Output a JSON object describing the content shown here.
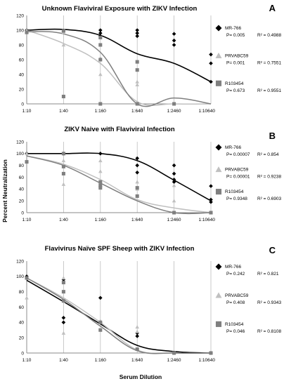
{
  "figure": {
    "ylabel": "Percent Neutralization",
    "xlabel": "Serum Dilution"
  },
  "chart_data": [
    {
      "type": "scatter",
      "panel_letter": "A",
      "title": "Unknown Flaviviral Exposure with ZIKV Infection",
      "categories": [
        "1:10",
        "1:40",
        "1:160",
        "1:640",
        "1:2460",
        "1:10640"
      ],
      "ylim": [
        0,
        120
      ],
      "yticks": [
        0,
        20,
        40,
        60,
        80,
        100,
        120
      ],
      "grid": "vertical",
      "legend_position": "right",
      "series": [
        {
          "name": "MR-766",
          "marker": "diamond",
          "color": "#000000",
          "p": "P= 0.005",
          "r2": "R² = 0.4988",
          "points": [
            [
              0,
              100
            ],
            [
              1,
              98
            ],
            [
              2,
              100
            ],
            [
              2,
              96
            ],
            [
              2,
              92
            ],
            [
              3,
              100
            ],
            [
              3,
              96
            ],
            [
              3,
              92
            ],
            [
              4,
              95
            ],
            [
              4,
              86
            ],
            [
              4,
              80
            ],
            [
              5,
              67
            ],
            [
              5,
              55
            ],
            [
              5,
              30
            ]
          ],
          "fit": [
            100,
            101,
            93,
            68,
            55,
            30
          ]
        },
        {
          "name": "PRVABC59",
          "marker": "triangle",
          "color": "#c0c0c0",
          "p": "P= 0.001",
          "r2": "R² = 0.7551",
          "points": [
            [
              0,
              100
            ],
            [
              0,
              97
            ],
            [
              1,
              97
            ],
            [
              1,
              80
            ],
            [
              2,
              62
            ],
            [
              2,
              40
            ],
            [
              3,
              30
            ],
            [
              3,
              26
            ]
          ],
          "fit": [
            100,
            82,
            55,
            3,
            0,
            0
          ]
        },
        {
          "name": "R103454",
          "marker": "square",
          "color": "#7f7f7f",
          "p": "P= 0.673",
          "r2": "R² = 0.9551",
          "points": [
            [
              0,
              97
            ],
            [
              1,
              99
            ],
            [
              1,
              10
            ],
            [
              2,
              90
            ],
            [
              2,
              80
            ],
            [
              2,
              60
            ],
            [
              2,
              0
            ],
            [
              3,
              57
            ],
            [
              3,
              46
            ],
            [
              3,
              0
            ],
            [
              4,
              0
            ]
          ],
          "fit": [
            98,
            95,
            70,
            0,
            8,
            0
          ]
        }
      ]
    },
    {
      "type": "scatter",
      "panel_letter": "B",
      "title": "ZIKV Naive with Flaviviral Infection",
      "categories": [
        "1:10",
        "1:40",
        "1:160",
        "1:640",
        "1:2460",
        "1:10640"
      ],
      "ylim": [
        0,
        120
      ],
      "yticks": [
        0,
        20,
        40,
        60,
        80,
        100,
        120
      ],
      "grid": "vertical",
      "legend_position": "right",
      "series": [
        {
          "name": "MR-766",
          "marker": "diamond",
          "color": "#000000",
          "p": "P= 0.00007",
          "r2": "R² = 0.854",
          "points": [
            [
              0,
              100
            ],
            [
              1,
              100
            ],
            [
              2,
              100
            ],
            [
              3,
              92
            ],
            [
              3,
              80
            ],
            [
              3,
              68
            ],
            [
              4,
              80
            ],
            [
              4,
              66
            ],
            [
              4,
              56
            ],
            [
              4,
              52
            ],
            [
              5,
              45
            ],
            [
              5,
              22
            ],
            [
              5,
              18
            ]
          ],
          "fit": [
            100,
            100,
            100,
            88,
            55,
            20
          ]
        },
        {
          "name": "PRVABC59",
          "marker": "triangle",
          "color": "#c0c0c0",
          "p": "P= 0.00001",
          "r2": "R² = 0.9238",
          "points": [
            [
              0,
              100
            ],
            [
              1,
              88
            ],
            [
              1,
              48
            ],
            [
              2,
              88
            ],
            [
              2,
              70
            ],
            [
              3,
              52
            ],
            [
              3,
              40
            ],
            [
              4,
              46
            ],
            [
              4,
              20
            ],
            [
              5,
              0
            ]
          ],
          "fit": [
            96,
            82,
            56,
            22,
            8,
            0
          ]
        },
        {
          "name": "R103454",
          "marker": "square",
          "color": "#7f7f7f",
          "p": "P= 0.9348",
          "r2": "R² = 0.6903",
          "points": [
            [
              0,
              86
            ],
            [
              1,
              100
            ],
            [
              1,
              78
            ],
            [
              1,
              66
            ],
            [
              2,
              52
            ],
            [
              2,
              46
            ],
            [
              2,
              42
            ],
            [
              3,
              42
            ],
            [
              3,
              28
            ],
            [
              4,
              0
            ],
            [
              5,
              0
            ]
          ],
          "fit": [
            96,
            80,
            50,
            20,
            0,
            0
          ]
        }
      ]
    },
    {
      "type": "scatter",
      "panel_letter": "C",
      "title": "Flavivirus Naïve SPF Sheep with ZIKV Infection",
      "categories": [
        "1:10",
        "1:40",
        "1:160",
        "1:640",
        "1:2460",
        "1:10640"
      ],
      "ylim": [
        0,
        120
      ],
      "yticks": [
        0,
        20,
        40,
        60,
        80,
        100,
        120
      ],
      "grid": "vertical",
      "legend_position": "right",
      "series": [
        {
          "name": "MR-766",
          "marker": "diamond",
          "color": "#000000",
          "p": "P= 0.242",
          "r2": "R² = 0.821",
          "points": [
            [
              0,
              100
            ],
            [
              1,
              46
            ],
            [
              1,
              40
            ],
            [
              1,
              96
            ],
            [
              2,
              72
            ],
            [
              2,
              40
            ],
            [
              3,
              26
            ],
            [
              3,
              22
            ],
            [
              4,
              0
            ],
            [
              5,
              0
            ]
          ],
          "fit": [
            95,
            67,
            38,
            10,
            2,
            0
          ]
        },
        {
          "name": "PRVABC59",
          "marker": "triangle",
          "color": "#c0c0c0",
          "p": "P= 0.408",
          "r2": "R² = 0.9343",
          "points": [
            [
              0,
              72
            ],
            [
              1,
              98
            ],
            [
              1,
              26
            ],
            [
              2,
              42
            ],
            [
              3,
              34
            ],
            [
              3,
              28
            ],
            [
              4,
              0
            ],
            [
              5,
              0
            ]
          ],
          "fit": [
            98,
            72,
            40,
            4,
            0,
            0
          ]
        },
        {
          "name": "R103454",
          "marker": "square",
          "color": "#7f7f7f",
          "p": "P= 0.046",
          "r2": "R² = 0.8108",
          "points": [
            [
              0,
              98
            ],
            [
              1,
              92
            ],
            [
              1,
              80
            ],
            [
              1,
              68
            ],
            [
              2,
              40
            ],
            [
              2,
              30
            ],
            [
              3,
              5
            ],
            [
              4,
              0
            ],
            [
              5,
              0
            ]
          ],
          "fit": [
            98,
            70,
            35,
            3,
            0,
            0
          ]
        }
      ]
    }
  ]
}
